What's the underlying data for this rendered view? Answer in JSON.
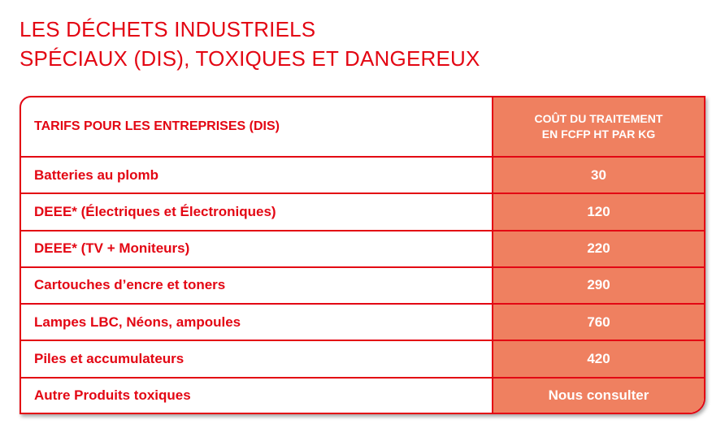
{
  "title": {
    "line1": "LES DÉCHETS INDUSTRIELS",
    "line2": "SPÉCIAUX (DIS), TOXIQUES ET DANGEREUX"
  },
  "table": {
    "header_left": "TARIFS POUR LES ENTREPRISES (DIS)",
    "header_right_line1": "COÛT DU TRAITEMENT",
    "header_right_line2": "EN FCFP HT PAR KG",
    "rows": [
      {
        "label": "Batteries au plomb",
        "value": "30"
      },
      {
        "label": "DEEE* (Électriques et Électroniques)",
        "value": "120"
      },
      {
        "label": "DEEE* (TV + Moniteurs)",
        "value": "220"
      },
      {
        "label": "Cartouches d’encre et toners",
        "value": "290"
      },
      {
        "label": "Lampes LBC, Néons, ampoules",
        "value": "760"
      },
      {
        "label": "Piles et accumulateurs",
        "value": "420"
      },
      {
        "label": "Autre Produits toxiques",
        "value": "Nous consulter"
      }
    ]
  },
  "colors": {
    "accent": "#e30613",
    "cell_fill": "#ef8060"
  }
}
